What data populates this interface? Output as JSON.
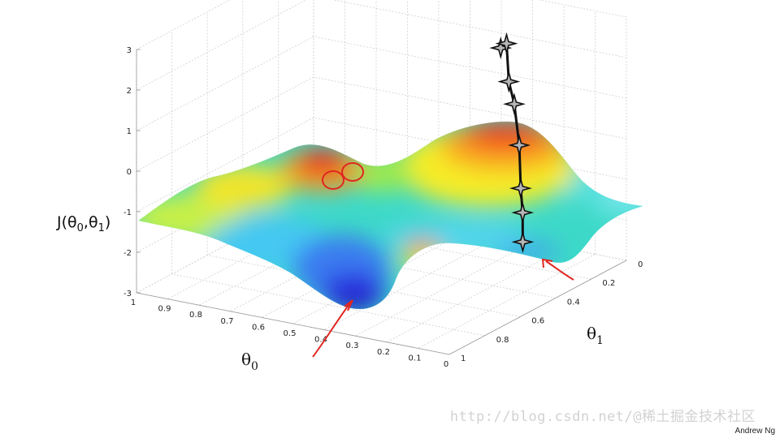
{
  "chart_data": {
    "type": "surface3d",
    "title": "",
    "zlabel": "J(θ0,θ1)",
    "xlabel": "θ0",
    "ylabel": "θ1",
    "z_ticks": [
      "3",
      "2",
      "1",
      "0",
      "-1",
      "-2",
      "-3"
    ],
    "theta0_ticks": [
      "1",
      "0.9",
      "0.8",
      "0.7",
      "0.6",
      "0.5",
      "0.4",
      "0.3",
      "0.2",
      "0.1",
      "0"
    ],
    "theta1_ticks": [
      "0",
      "0.2",
      "0.4",
      "0.6",
      "0.8",
      "1"
    ],
    "zlim": [
      -3,
      3
    ],
    "theta0_range": [
      0,
      1
    ],
    "theta1_range": [
      0,
      1
    ],
    "descent_path": [
      {
        "theta0": 0.3,
        "theta1": 0.18,
        "J": 2.2
      },
      {
        "theta0": 0.27,
        "theta1": 0.2,
        "J": 2.4
      },
      {
        "theta0": 0.24,
        "theta1": 0.24,
        "J": 1.6
      },
      {
        "theta0": 0.2,
        "theta1": 0.28,
        "J": 1.2
      },
      {
        "theta0": 0.15,
        "theta1": 0.34,
        "J": 0.4
      },
      {
        "theta0": 0.1,
        "theta1": 0.42,
        "J": -0.4
      },
      {
        "theta0": 0.06,
        "theta1": 0.48,
        "J": -0.8
      },
      {
        "theta0": 0.02,
        "theta1": 0.55,
        "J": -1.3
      }
    ],
    "colormap": "jet"
  },
  "credit": "Andrew Ng",
  "watermark": "http://blog.csdn.net/@稀土掘金技术社区"
}
